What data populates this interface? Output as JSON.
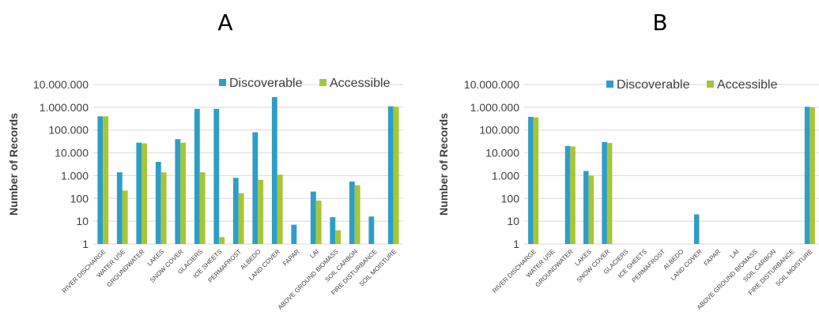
{
  "chart_data": [
    {
      "type": "bar",
      "panel_label": "A",
      "ylabel": "Number of Records",
      "yscale": "log",
      "ylim": [
        1,
        10000000
      ],
      "yticks": [
        "1",
        "10",
        "100",
        "1.000",
        "10.000",
        "100.000",
        "1.000.000",
        "10.000.000"
      ],
      "grid": true,
      "legend_position": "top-right",
      "categories": [
        "RIVER DISCHARGE",
        "WATER USE",
        "GROUNDWATER",
        "LAKES",
        "SNOW COVER",
        "GLACIERS",
        "ICE SHEETS",
        "PERMAFROST",
        "ALBEDO",
        "LAND COVER",
        "FAPAR",
        "LAI",
        "ABOVE GROUND BIOMASS",
        "SOIL CARBON",
        "FIRE DISTURBANCE",
        "SOIL MOISTURE"
      ],
      "series": [
        {
          "name": "Discoverable",
          "color": "#2E9EC6",
          "values": [
            400000,
            1400,
            28000,
            4000,
            40000,
            850000,
            850000,
            800,
            80000,
            2800000,
            7,
            200,
            15,
            550,
            16,
            1100000
          ]
        },
        {
          "name": "Accessible",
          "color": "#A7C636",
          "values": [
            400000,
            220,
            26000,
            1400,
            28000,
            1400,
            2,
            170,
            650,
            1100,
            1,
            80,
            4,
            380,
            1,
            1050000
          ]
        }
      ]
    },
    {
      "type": "bar",
      "panel_label": "B",
      "ylabel": "Number of Records",
      "yscale": "log",
      "ylim": [
        1,
        10000000
      ],
      "yticks": [
        "1",
        "10",
        "100",
        "1.000",
        "10.000",
        "100.000",
        "1.000.000",
        "10.000.000"
      ],
      "grid": true,
      "legend_position": "top-right",
      "categories": [
        "RIVER DISCHARGE",
        "WATER USE",
        "GROUNDWATER",
        "LAKES",
        "SNOW COVER",
        "GLACIERS",
        "ICE SHEETS",
        "PERMAFROST",
        "ALBEDO",
        "LAND COVER",
        "FAPAR",
        "LAI",
        "ABOVE GROUND BIOMASS",
        "SOIL CARBON",
        "FIRE DISTURBANCE",
        "SOIL MOISTURE"
      ],
      "series": [
        {
          "name": "Discoverable",
          "color": "#2E9EC6",
          "values": [
            380000,
            1,
            20000,
            1600,
            30000,
            1,
            1,
            1,
            1,
            20,
            1,
            1,
            1,
            1,
            1,
            1050000
          ]
        },
        {
          "name": "Accessible",
          "color": "#A7C636",
          "values": [
            360000,
            1,
            19000,
            1000,
            27000,
            1,
            1,
            1,
            1,
            1,
            1,
            1,
            1,
            1,
            1,
            1000000
          ]
        }
      ]
    }
  ]
}
